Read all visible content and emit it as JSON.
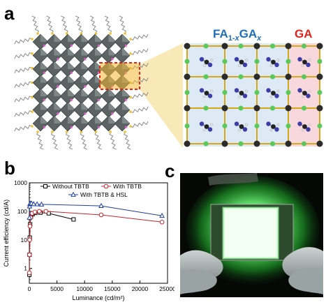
{
  "panels": {
    "a": "a",
    "b": "b",
    "c": "c"
  },
  "panel_a": {
    "label_left": {
      "base": "FA",
      "sub1": "1-",
      "italic1": "x",
      "mid": "GA",
      "sub2": "x"
    },
    "label_right": "GA",
    "colors": {
      "label_left": "#1f6fb8",
      "label_right": "#e2231a",
      "octahedra": "#5b6463",
      "highlight_box": "#e2231a",
      "highlight_fill": "#f2b631",
      "zoom_cone": "#f7e3a6",
      "cell_bg": "#dde9f4",
      "ga_column_bg": "#f9d8dd",
      "lattice": "#d6a817",
      "halide": "#59c959",
      "lead": "#2b2b2b",
      "molecule": "#3d3da8"
    }
  },
  "chart_data": {
    "type": "line",
    "xlabel": "Luminance (cd/m²)",
    "ylabel": "Current efficiency (cd/A)",
    "xlim": [
      0,
      25000
    ],
    "ylim": [
      0.3,
      1000
    ],
    "yscale": "log",
    "x_ticks": [
      0,
      5000,
      10000,
      15000,
      20000,
      25000
    ],
    "x_tick_labels": [
      "0",
      "5000",
      "10000",
      "15000",
      "20000",
      "25000"
    ],
    "y_ticks": [
      1,
      10,
      100,
      1000
    ],
    "y_tick_labels": [
      "1",
      "10",
      "100",
      "1000"
    ],
    "legend_position": "top",
    "series": [
      {
        "name": "Without TBTB",
        "color": "#000000",
        "marker": "square",
        "x": [
          15,
          40,
          80,
          150,
          300,
          600,
          1100,
          2000,
          3500,
          8000
        ],
        "y": [
          0.6,
          3,
          12,
          35,
          65,
          80,
          88,
          90,
          85,
          52
        ]
      },
      {
        "name": "With TBTB",
        "color": "#c0272d",
        "marker": "circle",
        "x": [
          10,
          30,
          60,
          120,
          250,
          500,
          1000,
          1800,
          3000,
          13000,
          24000
        ],
        "y": [
          0.7,
          3,
          10,
          30,
          60,
          85,
          95,
          100,
          100,
          75,
          42
        ]
      },
      {
        "name": "With TBTB & HSL",
        "color": "#1f3f99",
        "marker": "triangle",
        "x": [
          20,
          50,
          100,
          200,
          400,
          800,
          1400,
          2200,
          13000,
          24000
        ],
        "y": [
          60,
          150,
          180,
          190,
          190,
          180,
          178,
          175,
          155,
          70
        ]
      }
    ]
  },
  "panel_c": {
    "colors": {
      "background": "#050805",
      "glow": "#3df04e",
      "device": "#f4fff3",
      "glove": "#b5bcbc"
    }
  }
}
